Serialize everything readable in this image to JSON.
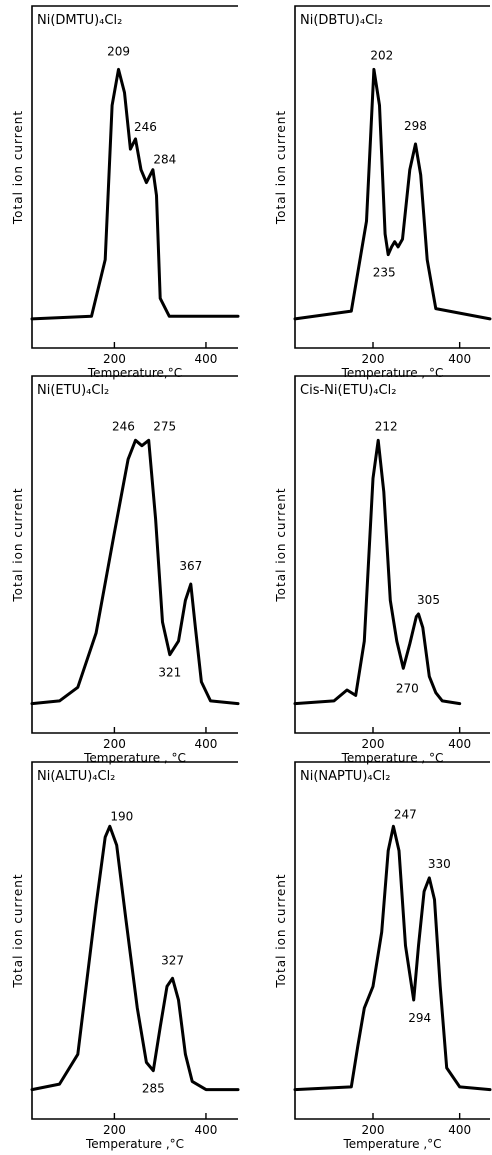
{
  "chart_data": [
    {
      "type": "line",
      "title": "Ni(DMTU)₄Cl₂",
      "xlabel": "Temperature,°C",
      "ylabel": "Total  ion  current",
      "xticks": [
        "200",
        "400"
      ],
      "xlim": [
        20,
        470
      ],
      "ylim": [
        0,
        1.05
      ],
      "series": [
        {
          "x": [
            20,
            150,
            180,
            195,
            209,
            222,
            235,
            246,
            258,
            270,
            284,
            292,
            300,
            320,
            470
          ],
          "y": [
            0.02,
            0.03,
            0.25,
            0.85,
            0.99,
            0.9,
            0.68,
            0.72,
            0.6,
            0.55,
            0.6,
            0.5,
            0.1,
            0.03,
            0.03
          ]
        }
      ],
      "annotations": [
        {
          "label": "209",
          "x": 209,
          "y": 0.99
        },
        {
          "label": "246",
          "x": 246,
          "y": 0.72
        },
        {
          "label": "284",
          "x": 284,
          "y": 0.6
        }
      ]
    },
    {
      "type": "line",
      "title": "Ni(DBTU)₄Cl₂",
      "xlabel": "Temperature , °C",
      "ylabel": "Total  ion  current",
      "xticks": [
        "200",
        "400"
      ],
      "xlim": [
        20,
        470
      ],
      "ylim": [
        0,
        1.05
      ],
      "series": [
        {
          "x": [
            20,
            150,
            185,
            202,
            215,
            228,
            235,
            243,
            250,
            258,
            268,
            285,
            298,
            310,
            325,
            345,
            470
          ],
          "y": [
            0.02,
            0.05,
            0.4,
            0.99,
            0.85,
            0.35,
            0.27,
            0.3,
            0.32,
            0.3,
            0.33,
            0.6,
            0.7,
            0.58,
            0.25,
            0.06,
            0.02
          ]
        }
      ],
      "annotations": [
        {
          "label": "202",
          "x": 202,
          "y": 0.99
        },
        {
          "label": "235",
          "x": 235,
          "y": 0.27
        },
        {
          "label": "298",
          "x": 298,
          "y": 0.7
        }
      ]
    },
    {
      "type": "line",
      "title": "Ni(ETU)₄Cl₂",
      "xlabel": "Temperature , °C",
      "ylabel": "Total  ion  current",
      "xticks": [
        "200",
        "400"
      ],
      "xlim": [
        20,
        470
      ],
      "ylim": [
        0,
        1.05
      ],
      "series": [
        {
          "x": [
            20,
            80,
            120,
            160,
            200,
            230,
            246,
            260,
            275,
            290,
            305,
            321,
            340,
            355,
            367,
            377,
            390,
            410,
            470
          ],
          "y": [
            0.02,
            0.03,
            0.08,
            0.28,
            0.65,
            0.92,
            0.99,
            0.97,
            0.99,
            0.7,
            0.32,
            0.2,
            0.25,
            0.4,
            0.46,
            0.3,
            0.1,
            0.03,
            0.02
          ]
        }
      ],
      "annotations": [
        {
          "label": "246",
          "x": 246,
          "y": 0.99
        },
        {
          "label": "275",
          "x": 275,
          "y": 0.99
        },
        {
          "label": "321",
          "x": 321,
          "y": 0.2
        },
        {
          "label": "367",
          "x": 367,
          "y": 0.46
        }
      ]
    },
    {
      "type": "line",
      "title": "Cis-Ni(ETU)₄Cl₂",
      "xlabel": "Temperature , °C",
      "ylabel": "Total  ion  current",
      "xticks": [
        "200",
        "400"
      ],
      "xlim": [
        20,
        470
      ],
      "ylim": [
        0,
        1.05
      ],
      "series": [
        {
          "x": [
            20,
            110,
            140,
            160,
            180,
            200,
            212,
            225,
            240,
            255,
            270,
            285,
            300,
            305,
            315,
            330,
            345,
            360,
            400
          ],
          "y": [
            0.02,
            0.03,
            0.07,
            0.05,
            0.25,
            0.85,
            0.99,
            0.8,
            0.4,
            0.25,
            0.15,
            0.24,
            0.34,
            0.35,
            0.3,
            0.12,
            0.06,
            0.03,
            0.02
          ]
        }
      ],
      "annotations": [
        {
          "label": "212",
          "x": 212,
          "y": 0.99
        },
        {
          "label": "270",
          "x": 270,
          "y": 0.15
        },
        {
          "label": "305",
          "x": 305,
          "y": 0.35
        }
      ]
    },
    {
      "type": "line",
      "title": "Ni(ALTU)₄Cl₂",
      "xlabel": "Temperature ,°C",
      "ylabel": "Total  ion  current",
      "xticks": [
        "200",
        "400"
      ],
      "xlim": [
        20,
        470
      ],
      "ylim": [
        0,
        1.05
      ],
      "series": [
        {
          "x": [
            20,
            80,
            120,
            160,
            180,
            190,
            205,
            225,
            250,
            270,
            285,
            300,
            315,
            327,
            340,
            355,
            370,
            400,
            470
          ],
          "y": [
            0.02,
            0.04,
            0.15,
            0.7,
            0.95,
            0.99,
            0.92,
            0.65,
            0.32,
            0.12,
            0.09,
            0.25,
            0.4,
            0.43,
            0.35,
            0.15,
            0.05,
            0.02,
            0.02
          ]
        }
      ],
      "annotations": [
        {
          "label": "190",
          "x": 190,
          "y": 0.99
        },
        {
          "label": "285",
          "x": 285,
          "y": 0.09
        },
        {
          "label": "327",
          "x": 327,
          "y": 0.43
        }
      ]
    },
    {
      "type": "line",
      "title": "Ni(NAPTU)₄Cl₂",
      "xlabel": "Temperature ,°C",
      "ylabel": "Total  ion  current",
      "xticks": [
        "200",
        "400"
      ],
      "xlim": [
        20,
        470
      ],
      "ylim": [
        0,
        1.05
      ],
      "series": [
        {
          "x": [
            20,
            150,
            165,
            180,
            200,
            220,
            235,
            247,
            260,
            275,
            294,
            305,
            318,
            330,
            342,
            355,
            370,
            400,
            470
          ],
          "y": [
            0.02,
            0.03,
            0.18,
            0.32,
            0.4,
            0.6,
            0.9,
            0.99,
            0.9,
            0.55,
            0.35,
            0.55,
            0.75,
            0.8,
            0.72,
            0.4,
            0.1,
            0.03,
            0.02
          ]
        }
      ],
      "annotations": [
        {
          "label": "247",
          "x": 247,
          "y": 0.99
        },
        {
          "label": "294",
          "x": 294,
          "y": 0.35
        },
        {
          "label": "330",
          "x": 330,
          "y": 0.8
        }
      ]
    }
  ]
}
